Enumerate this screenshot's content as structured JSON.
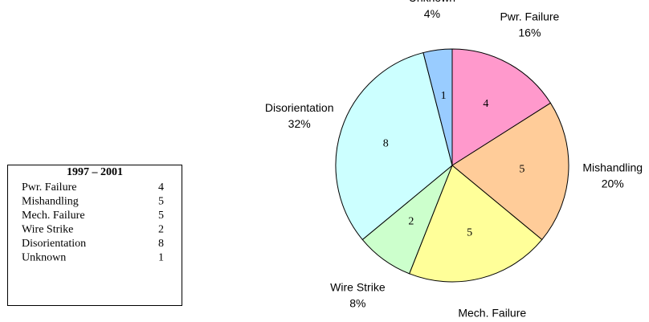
{
  "chart_data": {
    "type": "pie",
    "legend_title": "1997 – 2001",
    "categories": [
      "Pwr. Failure",
      "Mishandling",
      "Mech. Failure",
      "Wire Strike",
      "Disorientation",
      "Unknown"
    ],
    "values": [
      4,
      5,
      5,
      2,
      8,
      1
    ],
    "percent_labels": [
      "16%",
      "20%",
      "20%",
      "8%",
      "32%",
      "4%"
    ],
    "colors": [
      "#ff99cc",
      "#ffcc99",
      "#ffff99",
      "#ccffcc",
      "#ccffff",
      "#99ccff"
    ]
  }
}
